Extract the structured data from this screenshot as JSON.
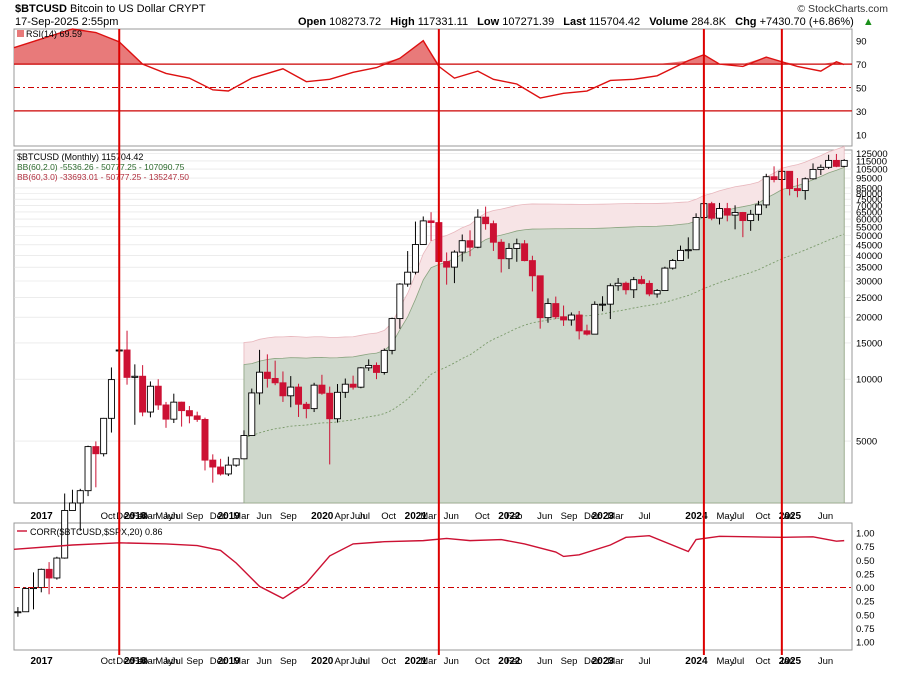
{
  "header": {
    "symbol": "$BTCUSD",
    "name": "Bitcoin to US Dollar",
    "exchange": "CRYPT",
    "datetime": "17-Sep-2025 2:55pm",
    "watermark": "© StockCharts.com",
    "quote": [
      {
        "label": "Open",
        "value": "108273.72"
      },
      {
        "label": "High",
        "value": "117331.11"
      },
      {
        "label": "Low",
        "value": "107271.39"
      },
      {
        "label": "Last",
        "value": "115704.42"
      },
      {
        "label": "Volume",
        "value": "284.8K"
      },
      {
        "label": "Chg",
        "value": "+7430.70 (+6.86%)"
      }
    ]
  },
  "legends": {
    "rsi": "RSI(14) 69.59",
    "price": "$BTCUSD (Monthly) 115704.42",
    "bb2": "BB(60,2.0) -5536.26 - 50777.25 - 107090.75",
    "bb3": "BB(60,3.0) -33693.01 - 50777.25 - 135247.50",
    "corr": "CORR($BTCUSD,$SPX,20) 0.86"
  },
  "colors": {
    "up": "#000000",
    "down": "#cc1133",
    "rsi_line": "#dd1111",
    "bb2_fill": "#cfd8cc",
    "bb3_fill": "#f7e4e6",
    "vline": "#dd0000",
    "grid": "#e0e0e0"
  },
  "chart_data": [
    {
      "type": "line",
      "panel": "rsi",
      "title": "RSI(14) 69.59",
      "ylim": [
        0,
        100
      ],
      "y_ticks": [
        "90",
        "70",
        "50",
        "30",
        "10"
      ],
      "reference_lines": [
        70,
        50,
        30
      ],
      "x": [
        "2016-11",
        "2017-06",
        "2017-09",
        "2017-12",
        "2018-03",
        "2018-06",
        "2018-09",
        "2018-12",
        "2019-02",
        "2019-05",
        "2019-09",
        "2019-12",
        "2020-03",
        "2020-06",
        "2020-09",
        "2020-12",
        "2021-03",
        "2021-05",
        "2021-07",
        "2021-10",
        "2021-12",
        "2022-03",
        "2022-06",
        "2022-09",
        "2022-12",
        "2023-03",
        "2023-06",
        "2023-09",
        "2024-01",
        "2024-03",
        "2024-05",
        "2024-08",
        "2024-11",
        "2025-01",
        "2025-03",
        "2025-06",
        "2025-08",
        "2025-09"
      ],
      "values": [
        84,
        100,
        97,
        89,
        70,
        62,
        58,
        48,
        47,
        58,
        66,
        55,
        57,
        63,
        67,
        75,
        90,
        68,
        58,
        64,
        57,
        53,
        41,
        45,
        47,
        56,
        57,
        60,
        73,
        78,
        70,
        68,
        76,
        72,
        68,
        64,
        72,
        69.59
      ]
    },
    {
      "type": "candlestick",
      "panel": "price",
      "title": "$BTCUSD (Monthly) 115704.42",
      "yscale": "log",
      "y_ticks": [
        "125000",
        "115000",
        "105000",
        "95000",
        "85000",
        "80000",
        "75000",
        "70000",
        "65000",
        "60000",
        "55000",
        "50000",
        "45000",
        "40000",
        "35000",
        "30000",
        "25000",
        "20000",
        "15000",
        "10000",
        "5000"
      ],
      "candles": [
        [
          "2016-11",
          740,
          700,
          780,
          740
        ],
        [
          "2016-12",
          960,
          740,
          975,
          740
        ],
        [
          "2017-01",
          970,
          760,
          1150,
          960
        ],
        [
          "2017-02",
          1190,
          920,
          1200,
          970
        ],
        [
          "2017-03",
          1080,
          900,
          1290,
          1190
        ],
        [
          "2017-04",
          1350,
          1060,
          1370,
          1080
        ],
        [
          "2017-05",
          2300,
          1340,
          2780,
          1350
        ],
        [
          "2017-06",
          2500,
          2300,
          2900,
          2300
        ],
        [
          "2017-07",
          2870,
          1830,
          2930,
          2500
        ],
        [
          "2017-08",
          4700,
          2700,
          4750,
          2870
        ],
        [
          "2017-09",
          4340,
          2980,
          4980,
          4700
        ],
        [
          "2017-10",
          6450,
          4210,
          6480,
          4340
        ],
        [
          "2017-11",
          9950,
          5500,
          11400,
          6450
        ],
        [
          "2017-12",
          13860,
          10850,
          19800,
          13860
        ],
        [
          "2018-01",
          10200,
          9400,
          17200,
          13860
        ],
        [
          "2018-02",
          10330,
          6000,
          11800,
          10200
        ],
        [
          "2018-03",
          6920,
          6600,
          11700,
          10330
        ],
        [
          "2018-04",
          9240,
          6520,
          9750,
          6920
        ],
        [
          "2018-05",
          7490,
          7090,
          9990,
          9240
        ],
        [
          "2018-06",
          6390,
          5800,
          7750,
          7490
        ],
        [
          "2018-07",
          7730,
          6120,
          8500,
          6390
        ],
        [
          "2018-08",
          7030,
          5880,
          7770,
          7730
        ],
        [
          "2018-09",
          6630,
          6100,
          7400,
          7030
        ],
        [
          "2018-10",
          6370,
          6200,
          6950,
          6630
        ],
        [
          "2018-11",
          4040,
          3600,
          6500,
          6370
        ],
        [
          "2018-12",
          3740,
          3140,
          4310,
          4040
        ],
        [
          "2019-01",
          3460,
          3400,
          4100,
          3740
        ],
        [
          "2019-02",
          3820,
          3380,
          4200,
          3460
        ],
        [
          "2019-03",
          4100,
          3750,
          4120,
          3820
        ],
        [
          "2019-04",
          5320,
          4080,
          5640,
          4100
        ],
        [
          "2019-05",
          8570,
          5300,
          9000,
          5320
        ],
        [
          "2019-06",
          10810,
          7530,
          13880,
          8570
        ],
        [
          "2019-07",
          10080,
          9100,
          13200,
          10810
        ],
        [
          "2019-08",
          9600,
          9350,
          12300,
          10080
        ],
        [
          "2019-09",
          8300,
          7750,
          10900,
          9600
        ],
        [
          "2019-10",
          9150,
          7300,
          10350,
          8300
        ],
        [
          "2019-11",
          7550,
          6550,
          9500,
          9150
        ],
        [
          "2019-12",
          7190,
          6450,
          7750,
          7550
        ],
        [
          "2020-01",
          9350,
          6920,
          9600,
          7190
        ],
        [
          "2020-02",
          8540,
          8400,
          10500,
          9350
        ],
        [
          "2020-03",
          6420,
          3850,
          9200,
          8540
        ],
        [
          "2020-04",
          8630,
          6150,
          9470,
          6420
        ],
        [
          "2020-05",
          9450,
          8110,
          10070,
          8630
        ],
        [
          "2020-06",
          9140,
          8900,
          10400,
          9450
        ],
        [
          "2020-07",
          11350,
          9030,
          11450,
          9140
        ],
        [
          "2020-08",
          11660,
          10970,
          12480,
          11350
        ],
        [
          "2020-09",
          10780,
          10000,
          12060,
          11660
        ],
        [
          "2020-10",
          13800,
          10520,
          14100,
          10780
        ],
        [
          "2020-11",
          19700,
          13200,
          19900,
          13800
        ],
        [
          "2020-12",
          28990,
          17570,
          29300,
          19700
        ],
        [
          "2021-01",
          33110,
          28130,
          41950,
          28990
        ],
        [
          "2021-02",
          45140,
          32300,
          58350,
          33110
        ],
        [
          "2021-03",
          58800,
          45000,
          61790,
          45140
        ],
        [
          "2021-04",
          57700,
          47000,
          64800,
          58800
        ],
        [
          "2021-05",
          37300,
          30000,
          59600,
          57700
        ],
        [
          "2021-06",
          35040,
          28800,
          41300,
          37300
        ],
        [
          "2021-07",
          41460,
          29300,
          42300,
          35040
        ],
        [
          "2021-08",
          47100,
          37300,
          50500,
          41460
        ],
        [
          "2021-09",
          43790,
          39600,
          52900,
          47100
        ],
        [
          "2021-10",
          61300,
          43300,
          67000,
          43790
        ],
        [
          "2021-11",
          57000,
          53300,
          69000,
          61300
        ],
        [
          "2021-12",
          46300,
          42000,
          59000,
          57000
        ],
        [
          "2022-01",
          38500,
          33000,
          47900,
          46300
        ],
        [
          "2022-02",
          43200,
          34300,
          45800,
          38500
        ],
        [
          "2022-03",
          45500,
          37200,
          48200,
          43200
        ],
        [
          "2022-04",
          37700,
          37400,
          47400,
          45500
        ],
        [
          "2022-05",
          31800,
          26700,
          39800,
          37700
        ],
        [
          "2022-06",
          19900,
          17600,
          31900,
          31800
        ],
        [
          "2022-07",
          23300,
          18800,
          24700,
          19900
        ],
        [
          "2022-08",
          20100,
          19600,
          25200,
          23300
        ],
        [
          "2022-09",
          19400,
          18150,
          22800,
          20100
        ],
        [
          "2022-10",
          20500,
          18200,
          21100,
          19400
        ],
        [
          "2022-11",
          17170,
          15600,
          21450,
          20500
        ],
        [
          "2022-12",
          16550,
          16300,
          18400,
          17170
        ],
        [
          "2023-01",
          23100,
          16500,
          23900,
          16550
        ],
        [
          "2023-02",
          23150,
          21400,
          25300,
          23100
        ],
        [
          "2023-03",
          28450,
          19600,
          29200,
          23150
        ],
        [
          "2023-04",
          29250,
          26900,
          31000,
          28450
        ],
        [
          "2023-05",
          27200,
          25800,
          29800,
          29250
        ],
        [
          "2023-06",
          30450,
          24800,
          31400,
          27200
        ],
        [
          "2023-07",
          29200,
          28900,
          31800,
          30450
        ],
        [
          "2023-08",
          25950,
          25300,
          30200,
          29200
        ],
        [
          "2023-09",
          26960,
          24900,
          27400,
          25950
        ],
        [
          "2023-10",
          34660,
          26900,
          35200,
          26960
        ],
        [
          "2023-11",
          37720,
          34100,
          38400,
          34660
        ],
        [
          "2023-12",
          42260,
          37600,
          44600,
          37720
        ],
        [
          "2024-01",
          42580,
          38500,
          48900,
          42260
        ],
        [
          "2024-02",
          61100,
          42400,
          64000,
          42580
        ],
        [
          "2024-03",
          71300,
          59300,
          73800,
          61100
        ],
        [
          "2024-04",
          60600,
          59200,
          72800,
          71300
        ],
        [
          "2024-05",
          67500,
          56500,
          71900,
          60600
        ],
        [
          "2024-06",
          62700,
          58500,
          71900,
          67500
        ],
        [
          "2024-07",
          64600,
          53500,
          70000,
          62700
        ],
        [
          "2024-08",
          59000,
          49000,
          65000,
          64600
        ],
        [
          "2024-09",
          63300,
          52600,
          66500,
          59000
        ],
        [
          "2024-10",
          70300,
          58900,
          73600,
          63300
        ],
        [
          "2024-11",
          96400,
          67800,
          99600,
          70300
        ],
        [
          "2024-12",
          93400,
          90500,
          108300,
          96400
        ],
        [
          "2025-01",
          102400,
          89200,
          109400,
          93400
        ],
        [
          "2025-02",
          84400,
          78200,
          102500,
          102400
        ],
        [
          "2025-03",
          82550,
          76600,
          95000,
          84400
        ],
        [
          "2025-04",
          94200,
          74500,
          95600,
          82550
        ],
        [
          "2025-05",
          104600,
          93400,
          111900,
          94200
        ],
        [
          "2025-06",
          107100,
          98300,
          110500,
          104600
        ],
        [
          "2025-07",
          115700,
          105100,
          123200,
          107100
        ],
        [
          "2025-08",
          108270,
          107300,
          124400,
          115700
        ],
        [
          "2025-09",
          115704.42,
          107271.39,
          117331.11,
          108273.72
        ]
      ],
      "candle_fields": [
        "date",
        "close",
        "low",
        "high",
        "open"
      ],
      "bollinger_bands": {
        "bb2": {
          "name": "BB(60,2.0)",
          "start": "2019-04",
          "lower": -5536.26,
          "middle": 50777.25,
          "upper": 107090.75
        },
        "bb3": {
          "name": "BB(60,3.0)",
          "start": "2019-04",
          "lower": -33693.01,
          "middle": 50777.25,
          "upper": 135247.5
        }
      }
    },
    {
      "type": "line",
      "panel": "correlation",
      "title": "CORR($BTCUSD,$SPX,20) 0.86",
      "ylim": [
        -1,
        1
      ],
      "y_ticks": [
        "1.00",
        "0.75",
        "0.50",
        "0.25",
        "0.00",
        "0.25",
        "0.50",
        "0.75",
        "1.00"
      ],
      "reference_lines": [
        0
      ],
      "x": [
        "2016-11",
        "2017-06",
        "2017-12",
        "2018-06",
        "2018-10",
        "2019-01",
        "2019-03",
        "2019-06",
        "2019-09",
        "2019-12",
        "2020-03",
        "2020-06",
        "2020-10",
        "2021-03",
        "2021-06",
        "2021-09",
        "2022-01",
        "2022-04",
        "2022-08",
        "2022-09",
        "2022-11",
        "2023-03",
        "2023-05",
        "2023-08",
        "2024-01",
        "2024-02",
        "2024-05",
        "2024-09",
        "2025-01",
        "2025-05",
        "2025-08",
        "2025-09"
      ],
      "values": [
        0.7,
        0.78,
        0.82,
        0.8,
        0.77,
        0.68,
        0.45,
        0.02,
        -0.2,
        0.08,
        0.58,
        0.8,
        0.84,
        0.86,
        0.9,
        0.86,
        0.88,
        0.8,
        0.65,
        0.57,
        0.6,
        0.78,
        0.92,
        0.95,
        0.66,
        0.88,
        0.94,
        0.93,
        0.92,
        0.93,
        0.85,
        0.86
      ]
    }
  ],
  "x_axis_labels": [
    "2017",
    "Oct",
    "Dec",
    "2018",
    "Feb",
    "Mar",
    "May",
    "Jun",
    "Jul",
    "Sep",
    "Dec",
    "2019",
    "Mar",
    "Jun",
    "Sep",
    "2020",
    "Apr",
    "Jun",
    "Jul",
    "Oct",
    "2021",
    "Mar",
    "Jun",
    "Oct",
    "Feb",
    "2022",
    "Jun",
    "Sep",
    "Dec",
    "2023",
    "Mar",
    "Jul",
    "2024",
    "May",
    "Jul",
    "Oct",
    "Jan",
    "2025",
    "Jun"
  ],
  "x_axis_labels_bold": [
    "2017",
    "2018",
    "2019",
    "2020",
    "2021",
    "2022",
    "2023",
    "2024",
    "2025"
  ],
  "x_axis_label_dates": [
    "2017-01",
    "2017-10",
    "2017-12",
    "2018-01",
    "2018-02",
    "2018-03",
    "2018-05",
    "2018-06",
    "2018-07",
    "2018-09",
    "2018-12",
    "2019-01",
    "2019-03",
    "2019-06",
    "2019-09",
    "2020-01",
    "2020-04",
    "2020-06",
    "2020-07",
    "2020-10",
    "2021-01",
    "2021-03",
    "2021-06",
    "2021-10",
    "2022-02",
    "2022-01",
    "2022-06",
    "2022-09",
    "2022-12",
    "2023-01",
    "2023-03",
    "2023-07",
    "2024-01",
    "2024-05",
    "2024-07",
    "2024-10",
    "2025-01",
    "2025-01",
    "2025-06"
  ],
  "marker_lines": [
    "2017-12",
    "2021-05",
    "2024-03",
    "2025-01"
  ]
}
